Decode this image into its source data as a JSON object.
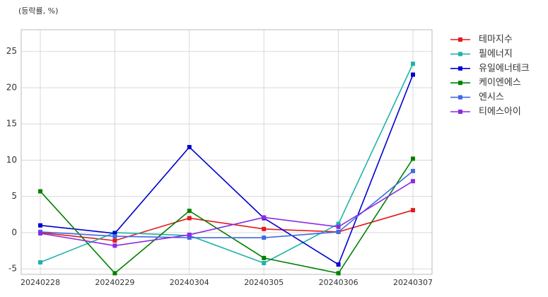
{
  "chart_data": {
    "type": "line",
    "ylabel": "(등락률, %)",
    "categories": [
      "20240228",
      "20240229",
      "20240304",
      "20240305",
      "20240306",
      "20240307"
    ],
    "series": [
      {
        "name": "테마지수",
        "color": "#e31a1c",
        "values": [
          0,
          -1.1,
          2.0,
          0.5,
          0.1,
          3.1
        ]
      },
      {
        "name": "필에너지",
        "color": "#20b2aa",
        "values": [
          -4.1,
          0,
          -0.4,
          -4.2,
          1.2,
          23.3
        ]
      },
      {
        "name": "유일에너테크",
        "color": "#0000cd",
        "values": [
          1.0,
          -0.1,
          11.8,
          2.0,
          -4.4,
          21.8
        ]
      },
      {
        "name": "케이엔에스",
        "color": "#008000",
        "values": [
          5.7,
          -5.6,
          3.0,
          -3.5,
          -5.6,
          10.2
        ]
      },
      {
        "name": "엔시스",
        "color": "#4169e1",
        "values": [
          0.1,
          -0.5,
          -0.7,
          -0.7,
          0.1,
          8.5
        ]
      },
      {
        "name": "티에스아이",
        "color": "#8a2be2",
        "values": [
          -0.1,
          -1.8,
          -0.3,
          2.1,
          0.8,
          7.1
        ]
      }
    ],
    "ylim": [
      -5.76,
      28
    ],
    "yticks": [
      -5,
      0,
      5,
      10,
      15,
      20,
      25
    ],
    "grid": true,
    "legend": "outside-right"
  }
}
